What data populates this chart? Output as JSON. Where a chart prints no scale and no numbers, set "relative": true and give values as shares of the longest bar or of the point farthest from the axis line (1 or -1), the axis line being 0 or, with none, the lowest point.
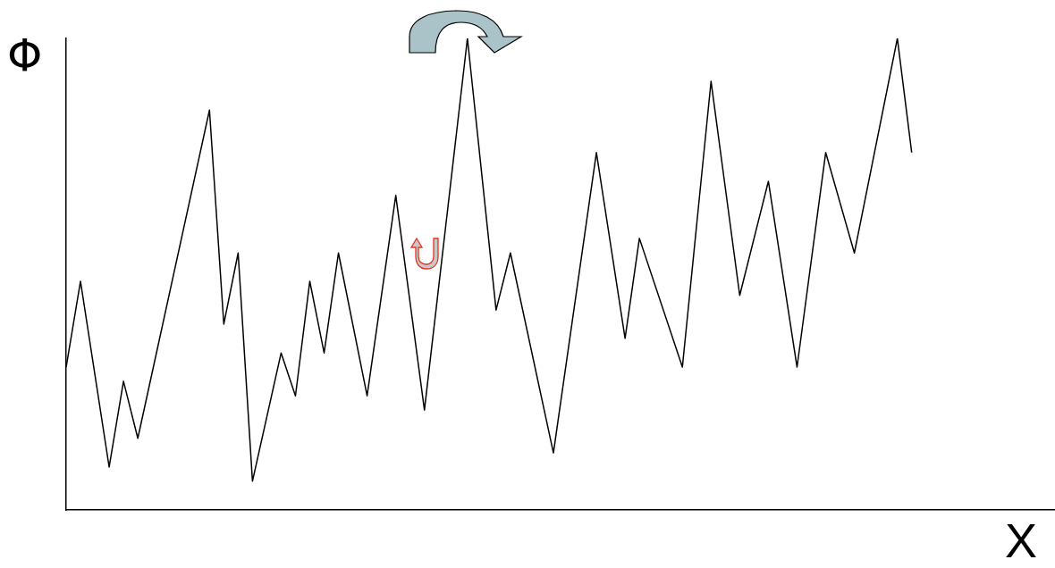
{
  "chart_data": {
    "type": "line",
    "xlabel": "X",
    "ylabel": "Φ",
    "relative": true,
    "tick_labels": false,
    "grid": false,
    "legend": false,
    "marker": "none",
    "line_style": "solid",
    "categories": [
      null,
      null,
      null,
      null,
      null,
      null,
      null,
      null,
      null,
      null,
      null,
      null,
      null,
      null,
      null,
      null,
      null,
      null,
      null,
      null,
      null,
      null,
      null,
      null,
      null,
      null,
      null,
      null,
      null,
      null,
      null,
      null,
      null,
      null,
      null,
      null,
      null,
      null,
      null,
      null,
      null,
      null,
      null,
      null,
      null,
      null,
      null,
      null,
      null,
      null,
      null,
      null,
      null,
      null,
      null,
      null,
      null,
      null,
      null,
      null,
      null,
      null,
      null,
      null,
      null,
      null,
      null,
      null,
      null,
      null
    ],
    "series": [
      {
        "color": "#000000",
        "values": [
          0.303,
          0.485,
          null,
          0.091,
          0.273,
          0.152,
          null,
          null,
          null,
          null,
          0.848,
          0.394,
          0.545,
          0.061,
          null,
          0.333,
          0.242,
          0.485,
          0.333,
          0.545,
          null,
          0.242,
          null,
          0.667,
          null,
          0.212,
          null,
          null,
          1,
          null,
          0.424,
          0.545,
          null,
          null,
          0.121,
          null,
          null,
          0.758,
          null,
          0.364,
          0.576,
          null,
          null,
          0.303,
          null,
          0.909,
          null,
          0.455,
          null,
          0.697,
          null,
          0.303,
          null,
          0.758,
          null,
          0.545,
          null,
          null,
          1,
          0.758,
          null,
          null,
          null,
          null,
          null,
          null,
          null,
          null,
          null,
          null
        ]
      }
    ]
  }
}
